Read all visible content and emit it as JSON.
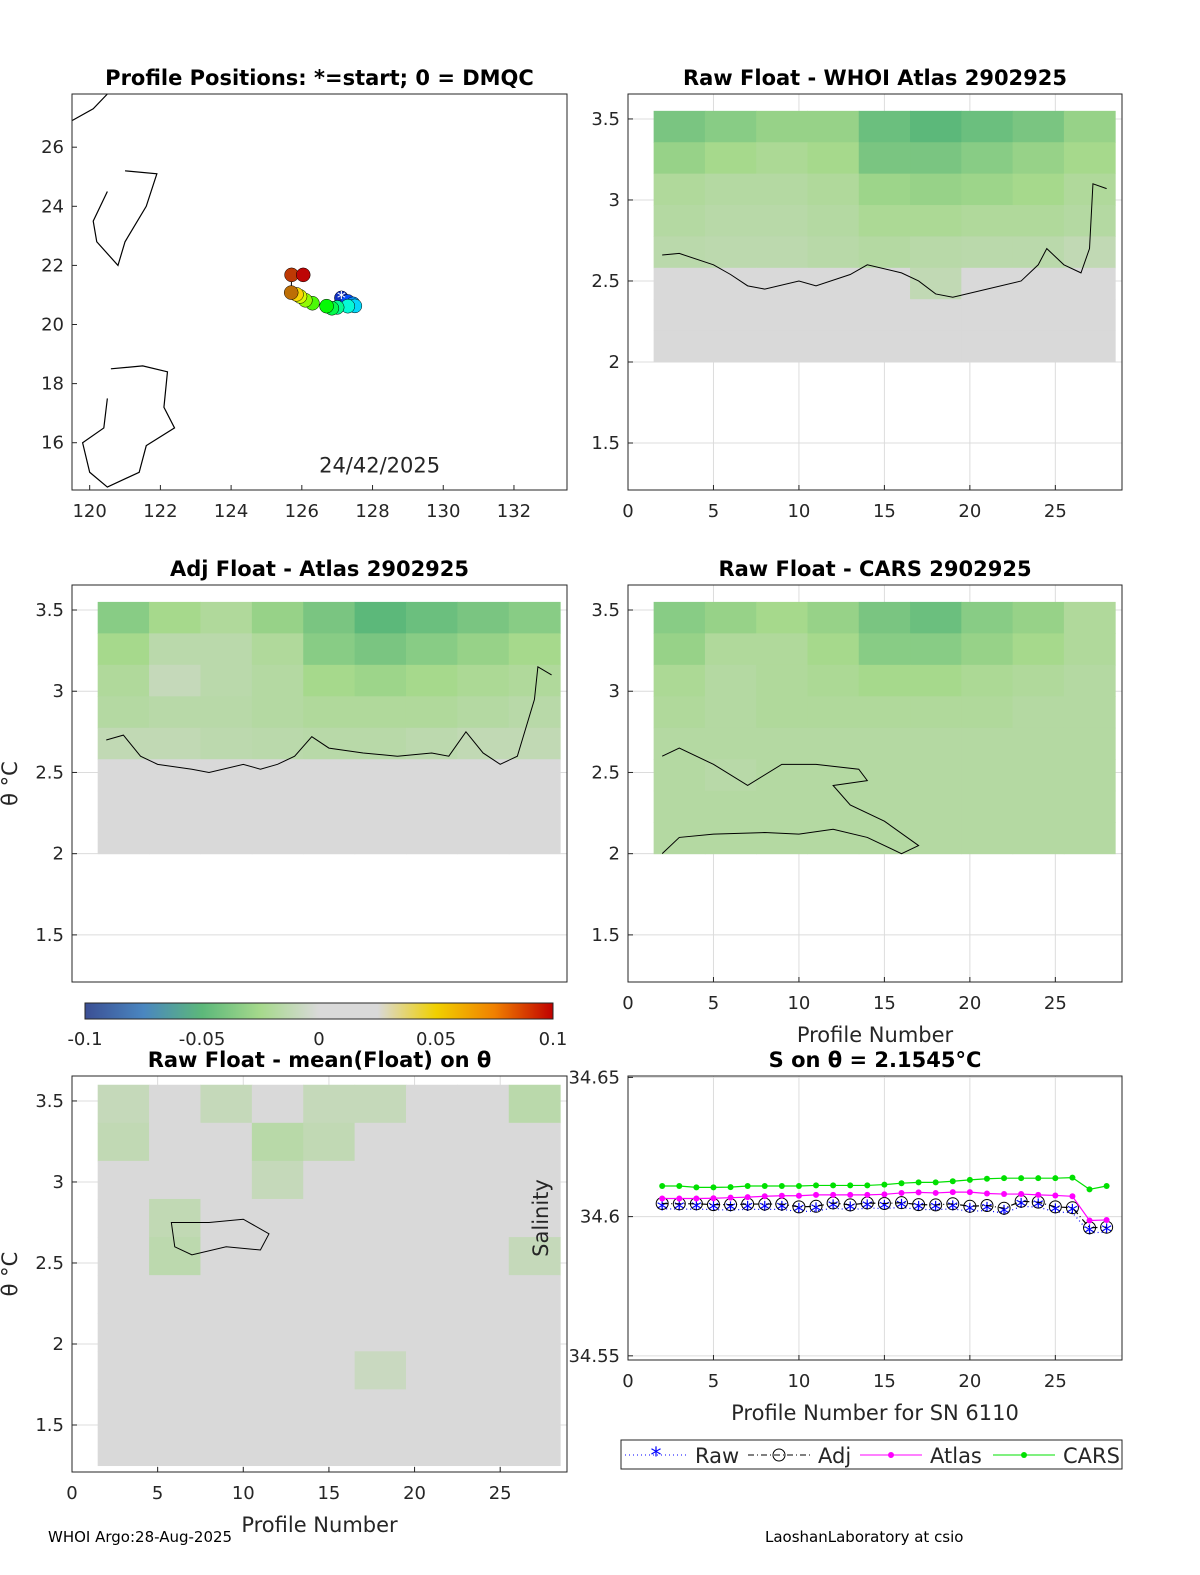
{
  "footer": {
    "left": "WHOI Argo:28-Aug-2025",
    "right": "LaoshanLaboratory at csio"
  },
  "colormap": {
    "range": [
      -0.1,
      0.1
    ],
    "stops": [
      "#3b4f94",
      "#4a86c0",
      "#5cb87a",
      "#a6d98c",
      "#d9d9d9",
      "#d9d9d9",
      "#f0d000",
      "#f08000",
      "#c00000"
    ],
    "ticks": [
      "-0.1",
      "-0.05",
      "0",
      "0.05",
      "0.1"
    ]
  },
  "chart_data": [
    {
      "type": "scatter",
      "title": "Profile Positions: *=start; 0 = DMQC",
      "xlim": [
        119.5,
        133.5
      ],
      "ylim": [
        14.4,
        27.8
      ],
      "xticks": [
        "120",
        "122",
        "124",
        "126",
        "128",
        "130",
        "132"
      ],
      "yticks": [
        "16",
        "18",
        "20",
        "22",
        "24",
        "26"
      ],
      "annotation": "24/42/2025",
      "annotation_pos": [
        128.2,
        15.0
      ],
      "coast": [
        [
          [
            121.0,
            25.2
          ],
          [
            121.9,
            25.1
          ],
          [
            121.6,
            24.0
          ],
          [
            121.0,
            22.8
          ],
          [
            120.8,
            22.0
          ],
          [
            120.2,
            22.8
          ],
          [
            120.1,
            23.5
          ],
          [
            120.5,
            24.5
          ]
        ],
        [
          [
            120.6,
            18.5
          ],
          [
            121.5,
            18.6
          ],
          [
            122.2,
            18.4
          ],
          [
            122.1,
            17.2
          ],
          [
            122.4,
            16.5
          ],
          [
            121.6,
            15.9
          ],
          [
            121.4,
            15.0
          ],
          [
            120.5,
            14.5
          ],
          [
            120.0,
            15.0
          ],
          [
            119.8,
            16.0
          ],
          [
            120.4,
            16.5
          ],
          [
            120.5,
            17.5
          ]
        ],
        [
          [
            119.5,
            26.9
          ],
          [
            120.1,
            27.3
          ],
          [
            120.5,
            27.8
          ]
        ]
      ],
      "track": [
        [
          127.12,
          20.9
        ],
        [
          127.3,
          20.78
        ],
        [
          127.45,
          20.7
        ],
        [
          127.5,
          20.63
        ],
        [
          127.3,
          20.62
        ],
        [
          127.0,
          20.58
        ],
        [
          126.85,
          20.55
        ],
        [
          126.7,
          20.62
        ],
        [
          126.3,
          20.72
        ],
        [
          126.1,
          20.82
        ],
        [
          125.95,
          20.95
        ],
        [
          125.85,
          21.02
        ],
        [
          125.7,
          21.08
        ],
        [
          125.71,
          21.68
        ],
        [
          126.04,
          21.68
        ]
      ]
    },
    {
      "type": "heatmap",
      "title": "Raw Float - WHOI Atlas  2902925",
      "xlim": [
        0,
        28.9
      ],
      "ylim": [
        1.21,
        3.654
      ],
      "xticks": [
        "0",
        "5",
        "10",
        "15",
        "20",
        "25"
      ],
      "yticks": [
        "1.5",
        "2",
        "2.5",
        "3",
        "3.5"
      ],
      "profiles": [
        2,
        28
      ],
      "theta": [
        2.0,
        3.55
      ],
      "grid": [
        [
          -0.04,
          -0.035,
          -0.03,
          -0.03,
          -0.045,
          -0.05,
          -0.045,
          -0.04,
          -0.03
        ],
        [
          -0.03,
          -0.025,
          -0.022,
          -0.025,
          -0.04,
          -0.04,
          -0.035,
          -0.03,
          -0.025
        ],
        [
          -0.02,
          -0.018,
          -0.018,
          -0.02,
          -0.028,
          -0.03,
          -0.028,
          -0.025,
          -0.02
        ],
        [
          -0.018,
          -0.016,
          -0.016,
          -0.018,
          -0.022,
          -0.022,
          -0.02,
          -0.02,
          -0.018
        ],
        [
          -0.015,
          -0.014,
          -0.014,
          -0.016,
          -0.018,
          -0.016,
          -0.015,
          -0.015,
          -0.012
        ],
        [
          0,
          0,
          0,
          0,
          0,
          -0.012,
          0,
          0,
          0
        ],
        [
          0,
          0,
          0,
          0,
          0,
          0,
          0,
          0,
          0
        ],
        [
          0,
          0,
          0,
          0,
          0,
          0,
          0,
          0,
          0
        ]
      ],
      "contour": [
        [
          2,
          2.66
        ],
        [
          3,
          2.67
        ],
        [
          5,
          2.6
        ],
        [
          6,
          2.54
        ],
        [
          7,
          2.47
        ],
        [
          8,
          2.45
        ],
        [
          10,
          2.5
        ],
        [
          11,
          2.47
        ],
        [
          13,
          2.54
        ],
        [
          14,
          2.6
        ],
        [
          16,
          2.55
        ],
        [
          17,
          2.5
        ],
        [
          18,
          2.42
        ],
        [
          19,
          2.4
        ],
        [
          21,
          2.45
        ],
        [
          23,
          2.5
        ],
        [
          24,
          2.6
        ],
        [
          24.5,
          2.7
        ],
        [
          25.5,
          2.6
        ],
        [
          26.5,
          2.55
        ],
        [
          27,
          2.7
        ],
        [
          27.2,
          3.1
        ],
        [
          28,
          3.07
        ]
      ]
    },
    {
      "type": "heatmap",
      "title": "Adj Float - Atlas  2902925",
      "xlim": [
        0,
        28.9
      ],
      "ylim": [
        1.21,
        3.654
      ],
      "xticks": [],
      "yticks": [
        "1.5",
        "2",
        "2.5",
        "3",
        "3.5"
      ],
      "ylabel": "θ °C",
      "profiles": [
        2,
        28
      ],
      "theta": [
        2.0,
        3.55
      ],
      "grid": [
        [
          -0.035,
          -0.025,
          -0.02,
          -0.03,
          -0.04,
          -0.05,
          -0.045,
          -0.04,
          -0.035
        ],
        [
          -0.025,
          -0.015,
          -0.015,
          -0.02,
          -0.035,
          -0.04,
          -0.035,
          -0.03,
          -0.025
        ],
        [
          -0.02,
          -0.01,
          -0.015,
          -0.018,
          -0.025,
          -0.028,
          -0.025,
          -0.022,
          -0.02
        ],
        [
          -0.018,
          -0.016,
          -0.016,
          -0.018,
          -0.02,
          -0.02,
          -0.02,
          -0.018,
          -0.016
        ],
        [
          -0.012,
          -0.012,
          -0.014,
          -0.015,
          -0.016,
          -0.016,
          -0.014,
          -0.012,
          -0.012
        ],
        [
          0,
          0,
          0,
          0,
          0,
          0,
          0,
          0,
          0
        ],
        [
          0,
          0,
          0,
          0,
          0,
          0,
          0,
          0,
          0
        ],
        [
          0,
          0,
          0,
          0,
          0,
          0,
          0,
          0,
          0
        ]
      ],
      "contour": [
        [
          2,
          2.7
        ],
        [
          3,
          2.73
        ],
        [
          4,
          2.6
        ],
        [
          5,
          2.55
        ],
        [
          7,
          2.52
        ],
        [
          8,
          2.5
        ],
        [
          10,
          2.55
        ],
        [
          11,
          2.52
        ],
        [
          12,
          2.55
        ],
        [
          13,
          2.6
        ],
        [
          14,
          2.72
        ],
        [
          15,
          2.65
        ],
        [
          17,
          2.62
        ],
        [
          19,
          2.6
        ],
        [
          21,
          2.62
        ],
        [
          22,
          2.6
        ],
        [
          23,
          2.75
        ],
        [
          24,
          2.62
        ],
        [
          25,
          2.55
        ],
        [
          26,
          2.6
        ],
        [
          27,
          2.95
        ],
        [
          27.2,
          3.15
        ],
        [
          28,
          3.1
        ]
      ]
    },
    {
      "type": "heatmap",
      "title": "Raw Float - CARS  2902925",
      "xlim": [
        0,
        28.9
      ],
      "ylim": [
        1.21,
        3.654
      ],
      "xticks": [
        "0",
        "5",
        "10",
        "15",
        "20",
        "25"
      ],
      "yticks": [
        "1.5",
        "2",
        "2.5",
        "3",
        "3.5"
      ],
      "xlabel": "Profile Number",
      "profiles": [
        2,
        28
      ],
      "theta": [
        2.0,
        3.55
      ],
      "grid": [
        [
          -0.035,
          -0.03,
          -0.025,
          -0.03,
          -0.04,
          -0.045,
          -0.035,
          -0.03,
          -0.02
        ],
        [
          -0.03,
          -0.02,
          -0.02,
          -0.025,
          -0.035,
          -0.035,
          -0.03,
          -0.025,
          -0.02
        ],
        [
          -0.022,
          -0.018,
          -0.02,
          -0.022,
          -0.025,
          -0.025,
          -0.022,
          -0.02,
          -0.018
        ],
        [
          -0.02,
          -0.018,
          -0.02,
          -0.02,
          -0.02,
          -0.02,
          -0.02,
          -0.018,
          -0.018
        ],
        [
          -0.018,
          -0.018,
          -0.018,
          -0.018,
          -0.018,
          -0.018,
          -0.018,
          -0.018,
          -0.018
        ],
        [
          -0.018,
          -0.016,
          -0.018,
          -0.018,
          -0.018,
          -0.018,
          -0.018,
          -0.018,
          -0.018
        ],
        [
          -0.018,
          -0.018,
          -0.018,
          -0.018,
          -0.018,
          -0.018,
          -0.018,
          -0.018,
          -0.018
        ],
        [
          -0.018,
          -0.018,
          -0.018,
          -0.018,
          -0.018,
          -0.018,
          -0.018,
          -0.018,
          -0.018
        ]
      ],
      "contour": [
        [
          2,
          2.0
        ],
        [
          3,
          2.1
        ],
        [
          5,
          2.12
        ],
        [
          8,
          2.13
        ],
        [
          10,
          2.12
        ],
        [
          12,
          2.15
        ],
        [
          14,
          2.1
        ],
        [
          16,
          2.0
        ],
        [
          17,
          2.05
        ],
        [
          15,
          2.2
        ],
        [
          13,
          2.3
        ],
        [
          12,
          2.42
        ],
        [
          14,
          2.45
        ],
        [
          13.5,
          2.52
        ],
        [
          11,
          2.55
        ],
        [
          9,
          2.55
        ],
        [
          7,
          2.42
        ],
        [
          5,
          2.55
        ],
        [
          3,
          2.65
        ],
        [
          2,
          2.6
        ]
      ]
    },
    {
      "type": "heatmap",
      "title": "Raw Float - mean(Float) on θ",
      "xlim": [
        0,
        28.9
      ],
      "ylim": [
        1.21,
        3.654
      ],
      "xticks": [
        "0",
        "5",
        "10",
        "15",
        "20",
        "25"
      ],
      "yticks": [
        "1.5",
        "2",
        "2.5",
        "3",
        "3.5"
      ],
      "xlabel": "Profile Number",
      "ylabel": "θ °C",
      "profiles": [
        2,
        28
      ],
      "theta": [
        1.25,
        3.6
      ],
      "grid": [
        [
          -0.01,
          0,
          -0.01,
          0,
          -0.01,
          -0.01,
          0,
          0,
          -0.015
        ],
        [
          -0.012,
          0,
          0,
          -0.016,
          -0.012,
          0,
          0,
          0,
          0
        ],
        [
          0,
          0,
          0,
          -0.01,
          0,
          0,
          0,
          0,
          0
        ],
        [
          0,
          -0.012,
          0,
          0,
          0,
          0,
          0,
          0,
          0
        ],
        [
          0,
          -0.014,
          0,
          0,
          0,
          0,
          0,
          0,
          -0.01
        ],
        [
          0,
          0,
          0,
          0,
          0,
          0,
          0,
          0,
          0
        ],
        [
          0,
          0,
          0,
          0,
          0,
          0,
          0,
          0,
          0
        ],
        [
          0,
          0,
          0,
          0,
          0,
          -0.008,
          0,
          0,
          0
        ],
        [
          0,
          0,
          0,
          0,
          0,
          0,
          0,
          0,
          0
        ],
        [
          0,
          0,
          0,
          0,
          0,
          0,
          0,
          0,
          0
        ]
      ],
      "contour": [
        [
          8,
          2.75
        ],
        [
          10,
          2.77
        ],
        [
          11.5,
          2.68
        ],
        [
          11,
          2.58
        ],
        [
          9,
          2.6
        ],
        [
          7,
          2.55
        ],
        [
          6,
          2.6
        ],
        [
          5.8,
          2.75
        ],
        [
          8,
          2.75
        ]
      ]
    },
    {
      "type": "line",
      "title": "S on θ = 2.1545°C",
      "xlim": [
        0,
        28.9
      ],
      "ylim": [
        34.5485,
        34.6505
      ],
      "xticks": [
        "0",
        "5",
        "10",
        "15",
        "20",
        "25"
      ],
      "yticks": [
        "34.55",
        "34.6",
        "34.65"
      ],
      "yticks_val": [
        34.55,
        34.6,
        34.65
      ],
      "xlabel": "Profile Number for SN 6110",
      "ylabel": "Salinity",
      "grid": true,
      "legend": "bottom-outside",
      "x": [
        2,
        3,
        4,
        5,
        6,
        7,
        8,
        9,
        10,
        11,
        12,
        13,
        14,
        15,
        16,
        17,
        18,
        19,
        20,
        21,
        22,
        23,
        24,
        25,
        26,
        27,
        28
      ],
      "series": [
        {
          "name": "Raw",
          "color": "#0000ff",
          "values": [
            34.6028,
            34.6027,
            34.6027,
            34.6025,
            34.6024,
            34.6026,
            34.6026,
            34.6026,
            34.6018,
            34.602,
            34.6031,
            34.6024,
            34.6031,
            34.6029,
            34.6033,
            34.6026,
            34.6025,
            34.6028,
            34.6019,
            34.6022,
            34.6012,
            34.6037,
            34.6034,
            34.6017,
            34.6014,
            34.5942,
            34.5944
          ]
        },
        {
          "name": "Adj",
          "color": "#000000",
          "values": [
            34.6047,
            34.6046,
            34.6046,
            34.6043,
            34.6043,
            34.6045,
            34.6045,
            34.6045,
            34.6035,
            34.6037,
            34.6049,
            34.6042,
            34.6049,
            34.6047,
            34.605,
            34.6043,
            34.6042,
            34.6046,
            34.6037,
            34.604,
            34.603,
            34.6055,
            34.6052,
            34.6035,
            34.6032,
            34.596,
            34.5962
          ]
        },
        {
          "name": "Atlas",
          "color": "#ff00ff",
          "values": [
            34.6065,
            34.6065,
            34.6065,
            34.6066,
            34.6068,
            34.607,
            34.6073,
            34.6075,
            34.6075,
            34.6078,
            34.6078,
            34.6078,
            34.6078,
            34.608,
            34.6085,
            34.6087,
            34.6085,
            34.6088,
            34.6088,
            34.6083,
            34.6081,
            34.6081,
            34.6078,
            34.6076,
            34.6073,
            34.5986,
            34.5988
          ]
        },
        {
          "name": "CARS",
          "color": "#00e000",
          "values": [
            34.611,
            34.611,
            34.6105,
            34.6105,
            34.6106,
            34.611,
            34.611,
            34.611,
            34.611,
            34.6112,
            34.6112,
            34.6112,
            34.6112,
            34.6115,
            34.612,
            34.6123,
            34.6123,
            34.6127,
            34.6132,
            34.6136,
            34.6138,
            34.6138,
            34.6138,
            34.6138,
            34.614,
            34.6098,
            34.611
          ]
        }
      ]
    }
  ]
}
